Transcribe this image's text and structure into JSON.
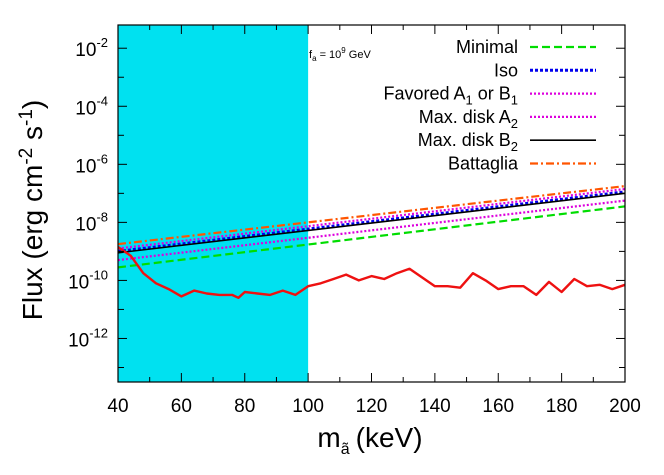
{
  "chart_data": {
    "type": "line",
    "xlabel": "m",
    "xlabel_sub": "ã",
    "xlabel_unit": "(keV)",
    "ylabel_main": "Flux (erg cm",
    "ylabel_exp1": "-2",
    "ylabel_mid": " s",
    "ylabel_exp2": "-1",
    "ylabel_end": ")",
    "xlim": [
      40,
      200
    ],
    "ylim_log10": [
      -13.5,
      -1.2
    ],
    "y_scale": "log",
    "x_ticks": [
      40,
      60,
      80,
      100,
      120,
      140,
      160,
      180,
      200
    ],
    "x_tick_labels": [
      "40",
      "60",
      "80",
      "100",
      "120",
      "140",
      "160",
      "180",
      "200"
    ],
    "y_ticks_log10": [
      -2,
      -4,
      -6,
      -8,
      -10,
      -12
    ],
    "y_tick_base": "10",
    "y_tick_exponents": [
      "-2",
      "-4",
      "-6",
      "-8",
      "-10",
      "-12"
    ],
    "annotation": {
      "prefix": "f",
      "sub": "a",
      "mid": " = 10",
      "sup": "9",
      "suffix": " GeV"
    },
    "shaded_region": {
      "x": [
        40,
        100
      ],
      "color": "#00e1f0"
    },
    "legend_position": "top-right",
    "series": [
      {
        "name": "Minimal",
        "name_main": "Minimal",
        "name_sub": "",
        "name_tail": "",
        "name_sub2": "",
        "color": "#00dd00",
        "dash": "8,4",
        "width": 2.2,
        "x": [
          40,
          200
        ],
        "log10_y": [
          -9.55,
          -7.45
        ]
      },
      {
        "name": "Iso",
        "name_main": "Iso",
        "name_sub": "",
        "name_tail": "",
        "name_sub2": "",
        "color": "#0000ee",
        "dash": "3,2",
        "width": 3,
        "x": [
          40,
          200
        ],
        "log10_y": [
          -9.0,
          -6.95
        ]
      },
      {
        "name": "Favored A1 or B1",
        "name_main": "Favored A",
        "name_sub": "1",
        "name_tail": " or B",
        "name_sub2": "1",
        "color": "#dd00dd",
        "dash": "2,2",
        "width": 2.2,
        "x": [
          40,
          200
        ],
        "log10_y": [
          -9.3,
          -7.25
        ]
      },
      {
        "name": "Max. disk A2",
        "name_main": "Max. disk A",
        "name_sub": "2",
        "name_tail": "",
        "name_sub2": "",
        "color": "#dd00dd",
        "dash": "2,2",
        "width": 2.2,
        "x": [
          40,
          200
        ],
        "log10_y": [
          -8.9,
          -6.85
        ]
      },
      {
        "name": "Max. disk B2",
        "name_main": "Max. disk B",
        "name_sub": "2",
        "name_tail": "",
        "name_sub2": "",
        "color": "#000000",
        "dash": "",
        "width": 1.6,
        "x": [
          40,
          200
        ],
        "log10_y": [
          -9.05,
          -7.0
        ]
      },
      {
        "name": "Battaglia",
        "name_main": "Battaglia",
        "name_sub": "",
        "name_tail": "",
        "name_sub2": "",
        "color": "#ff5500",
        "dash": "8,3,2,3",
        "width": 2.2,
        "x": [
          40,
          200
        ],
        "log10_y": [
          -8.75,
          -6.75
        ]
      }
    ],
    "limit_curve": {
      "color": "#ee1111",
      "x": [
        40,
        44,
        48,
        52,
        56,
        60,
        64,
        68,
        72,
        76,
        78,
        80,
        84,
        88,
        92,
        96,
        100,
        104,
        108,
        112,
        116,
        120,
        124,
        128,
        132,
        136,
        140,
        144,
        148,
        152,
        156,
        160,
        164,
        168,
        172,
        176,
        180,
        184,
        188,
        192,
        196,
        200
      ],
      "log10_y": [
        -8.85,
        -9.15,
        -9.75,
        -10.1,
        -10.3,
        -10.55,
        -10.35,
        -10.45,
        -10.5,
        -10.5,
        -10.6,
        -10.4,
        -10.45,
        -10.5,
        -10.35,
        -10.5,
        -10.2,
        -10.1,
        -9.95,
        -9.8,
        -10.0,
        -9.85,
        -9.95,
        -9.75,
        -9.6,
        -9.9,
        -10.2,
        -10.2,
        -10.25,
        -9.75,
        -10.0,
        -10.3,
        -10.2,
        -10.2,
        -10.5,
        -10.05,
        -10.4,
        -9.95,
        -10.2,
        -10.15,
        -10.3,
        -10.15
      ]
    }
  }
}
